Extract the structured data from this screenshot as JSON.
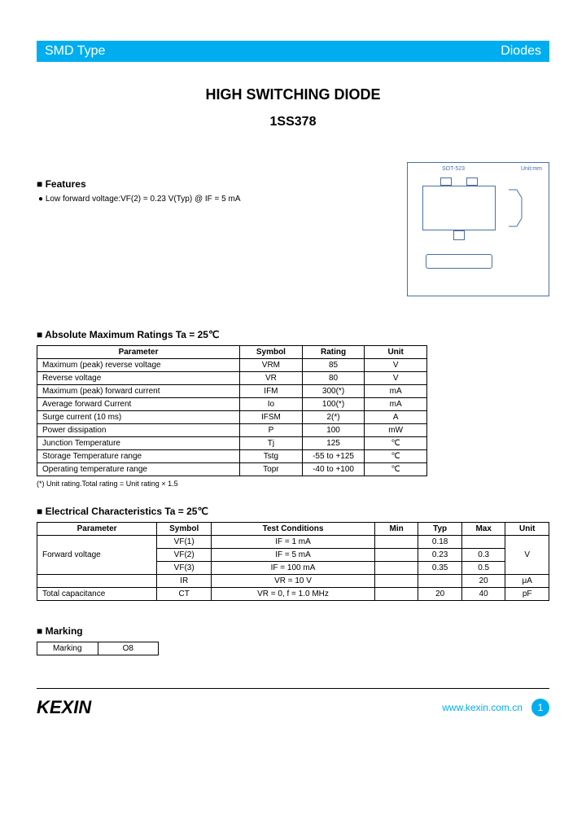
{
  "header": {
    "left": "SMD Type",
    "right": "Diodes"
  },
  "title": "HIGH SWITCHING DIODE",
  "part_no": "1SS378",
  "features": {
    "heading": "Features",
    "items": [
      "Low forward voltage:VF(2) = 0.23 V(Typ) @ IF = 5 mA"
    ]
  },
  "package_labels": {
    "top": "SOT-523",
    "right": "Unit:mm"
  },
  "abs_max": {
    "heading": "Absolute Maximum Ratings Ta = 25℃",
    "columns": [
      "Parameter",
      "Symbol",
      "Rating",
      "Unit"
    ],
    "rows": [
      [
        "Maximum (peak) reverse voltage",
        "VRM",
        "85",
        "V"
      ],
      [
        "Reverse voltage",
        "VR",
        "80",
        "V"
      ],
      [
        "Maximum (peak) forward current",
        "IFM",
        "300(*)",
        "mA"
      ],
      [
        "Average forward Current",
        "Io",
        "100(*)",
        "mA"
      ],
      [
        "Surge current (10 ms)",
        "IFSM",
        "2(*)",
        "A"
      ],
      [
        "Power dissipation",
        "P",
        "100",
        "mW"
      ],
      [
        "Junction Temperature",
        "Tj",
        "125",
        "℃"
      ],
      [
        "Storage Temperature range",
        "Tstg",
        "-55 to +125",
        "℃"
      ],
      [
        "Operating temperature range",
        "Topr",
        "-40 to +100",
        "℃"
      ]
    ],
    "note": "(*) Unit rating.Total rating = Unit rating × 1.5"
  },
  "elec_char": {
    "heading": "Electrical Characteristics Ta = 25℃",
    "columns": [
      "Parameter",
      "Symbol",
      "Test Conditions",
      "Min",
      "Typ",
      "Max",
      "Unit"
    ],
    "rows": [
      {
        "param": "Forward  voltage",
        "rowspan": 3,
        "symbol": "VF(1)",
        "cond": "IF = 1  mA",
        "min": "",
        "typ": "0.18",
        "max": "",
        "unit": "V",
        "unit_rowspan": 3
      },
      {
        "symbol": "VF(2)",
        "cond": "IF = 5  mA",
        "min": "",
        "typ": "0.23",
        "max": "0.3"
      },
      {
        "symbol": "VF(3)",
        "cond": "IF = 100  mA",
        "min": "",
        "typ": "0.35",
        "max": "0.5"
      },
      {
        "param": "",
        "symbol": "IR",
        "cond": "VR = 10 V",
        "min": "",
        "typ": "",
        "max": "20",
        "unit": "μA"
      },
      {
        "param": "Total capacitance",
        "symbol": "CT",
        "cond": "VR = 0, f = 1.0 MHz",
        "min": "",
        "typ": "20",
        "max": "40",
        "unit": "pF"
      }
    ]
  },
  "marking": {
    "heading": "Marking",
    "label": "Marking",
    "value": "O8"
  },
  "footer": {
    "logo": "KEXIN",
    "url": "www.kexin.com.cn",
    "page": "1"
  },
  "style": {
    "accent": "#00aeef",
    "diagram_stroke": "#4a6fa5",
    "font_body": 11,
    "font_table": 10
  }
}
